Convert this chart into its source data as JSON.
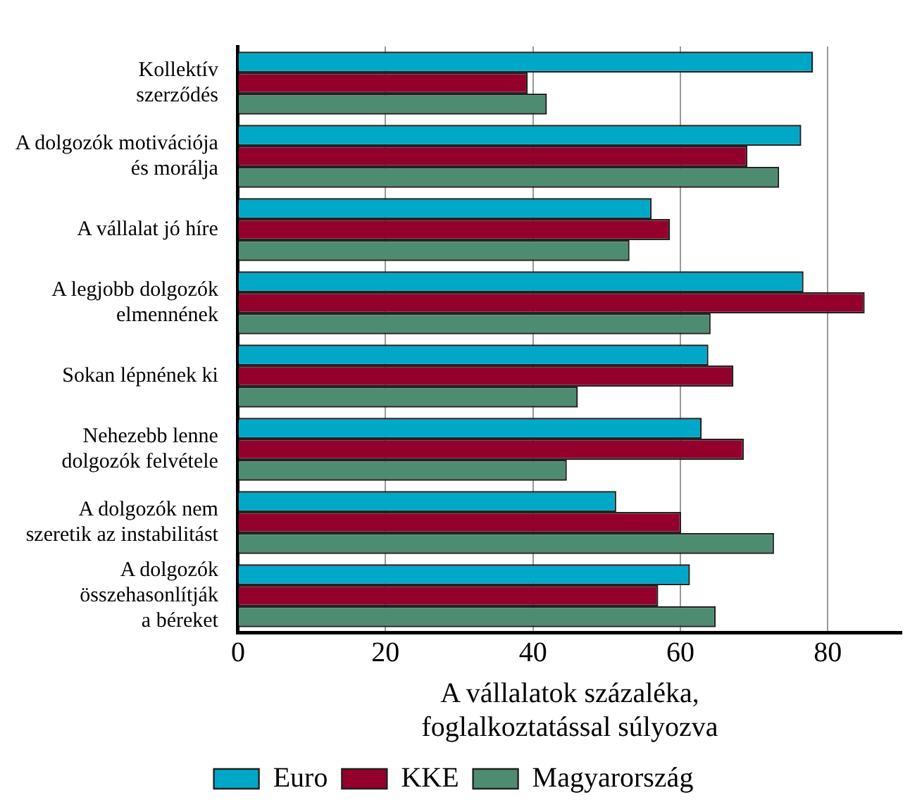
{
  "chart_data": {
    "type": "bar",
    "orientation": "horizontal",
    "xlabel": "A vállalatok százaléka,\nfoglalkoztatással súlyozva",
    "categories": [
      "Kollektív\nszerződés",
      "A dolgozók motivációja\nés morálja",
      "A vállalat jó híre",
      "A legjobb dolgozók\nelmennének",
      "Sokan lépnének ki",
      "Nehezebb lenne\ndolgozók felvétele",
      "A dolgozók nem\nszeretik az instabilitást",
      "A dolgozók\nösszehasonlítják\na béreket"
    ],
    "series": [
      {
        "name": "Euro",
        "color": "#00a8c8",
        "values": [
          78.0,
          76.4,
          56.1,
          76.7,
          63.8,
          62.9,
          51.3,
          61.3
        ]
      },
      {
        "name": "KKE",
        "color": "#93002c",
        "values": [
          39.3,
          69.1,
          58.6,
          85.0,
          67.2,
          68.6,
          60.1,
          57.0
        ]
      },
      {
        "name": "Magyarország",
        "color": "#4e8c72",
        "values": [
          41.9,
          73.4,
          53.1,
          64.1,
          46.1,
          44.6,
          72.7,
          64.8
        ]
      }
    ],
    "xlim": [
      0,
      90
    ],
    "xticks": [
      0,
      20,
      40,
      60,
      80
    ],
    "grid": "x",
    "legend": "bottom"
  }
}
